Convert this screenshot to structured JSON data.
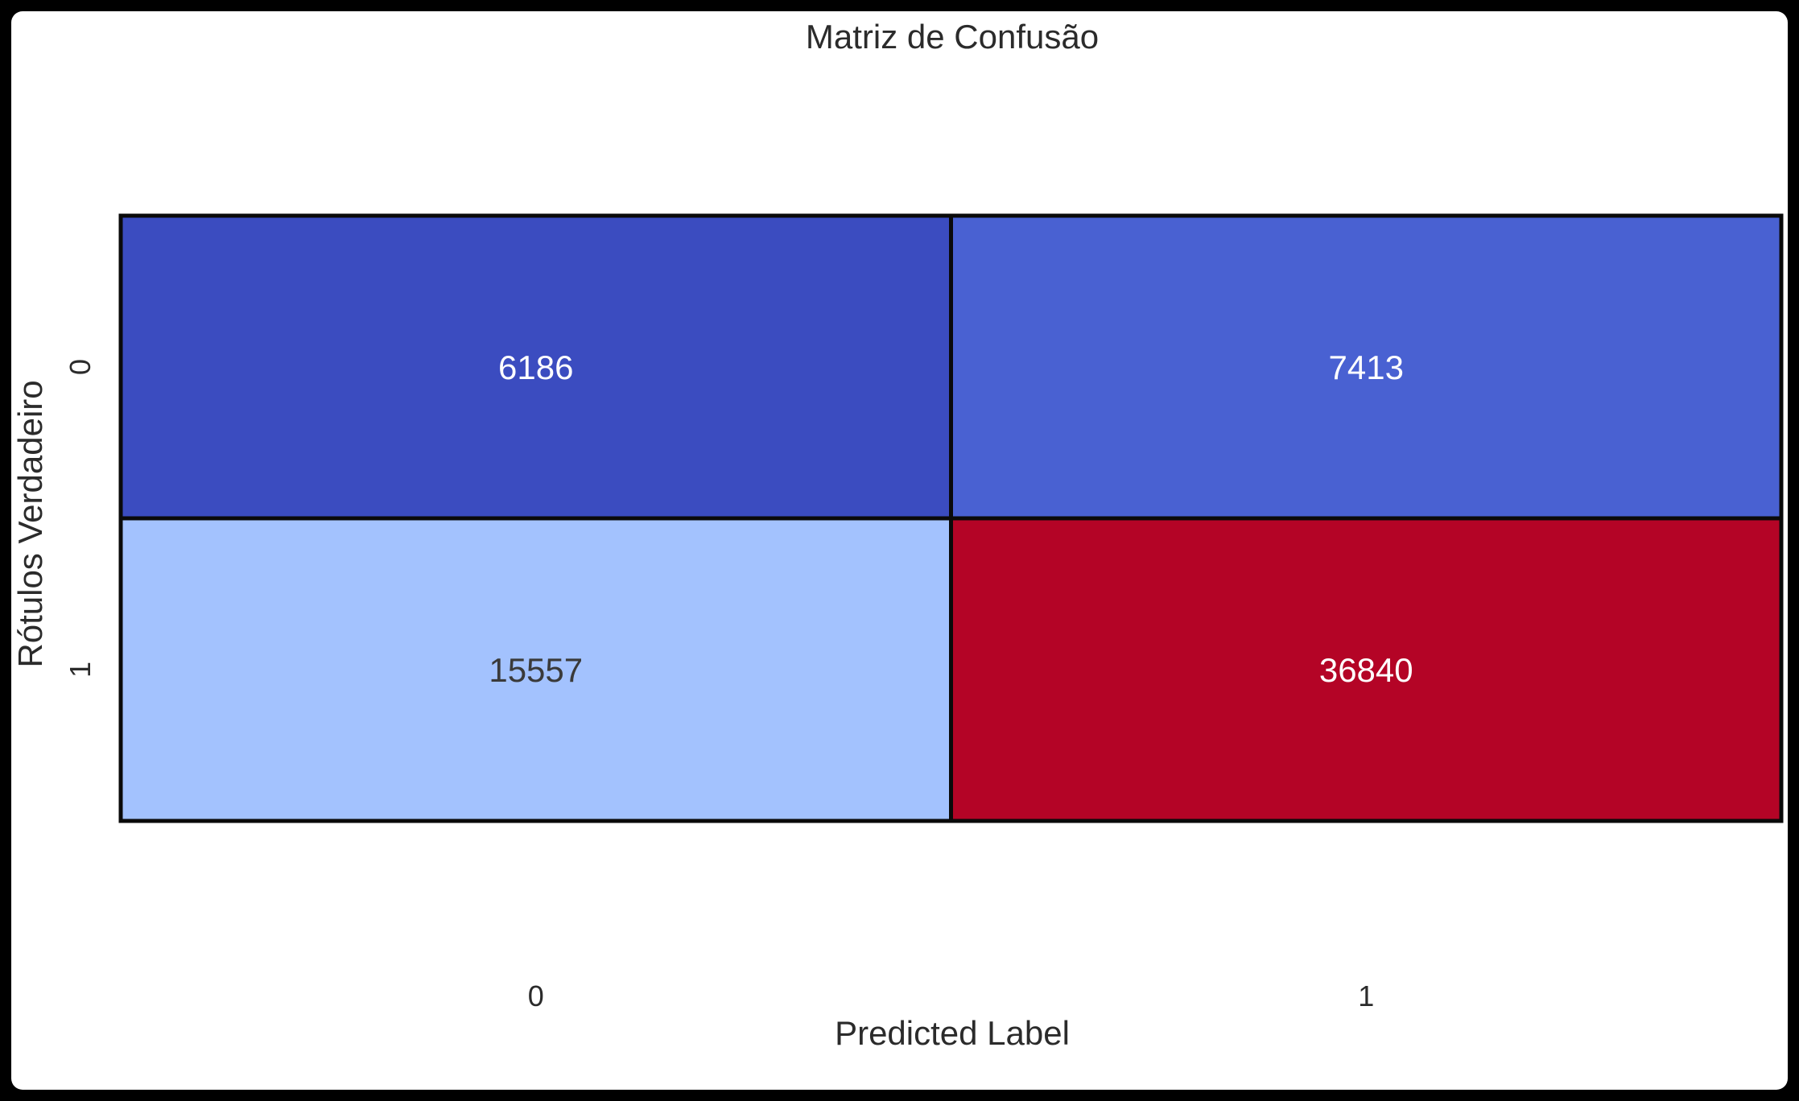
{
  "chart_data": {
    "type": "heatmap",
    "title": "Matriz de Confusão",
    "xlabel": "Predicted Label",
    "ylabel": "Rótulos Verdadeiro",
    "x_tick_labels": [
      "0",
      "1"
    ],
    "y_tick_labels": [
      "0",
      "1"
    ],
    "matrix": [
      [
        6186,
        7413
      ],
      [
        15557,
        36840
      ]
    ],
    "colormap": "coolwarm",
    "cell_colors": [
      [
        "#3b4cc0",
        "#4961d2"
      ],
      [
        "#a3c2fe",
        "#b40426"
      ]
    ],
    "cell_text_colors": [
      [
        "#ffffff",
        "#ffffff"
      ],
      [
        "#3a3a3a",
        "#ffffff"
      ]
    ],
    "colorbar": false
  }
}
